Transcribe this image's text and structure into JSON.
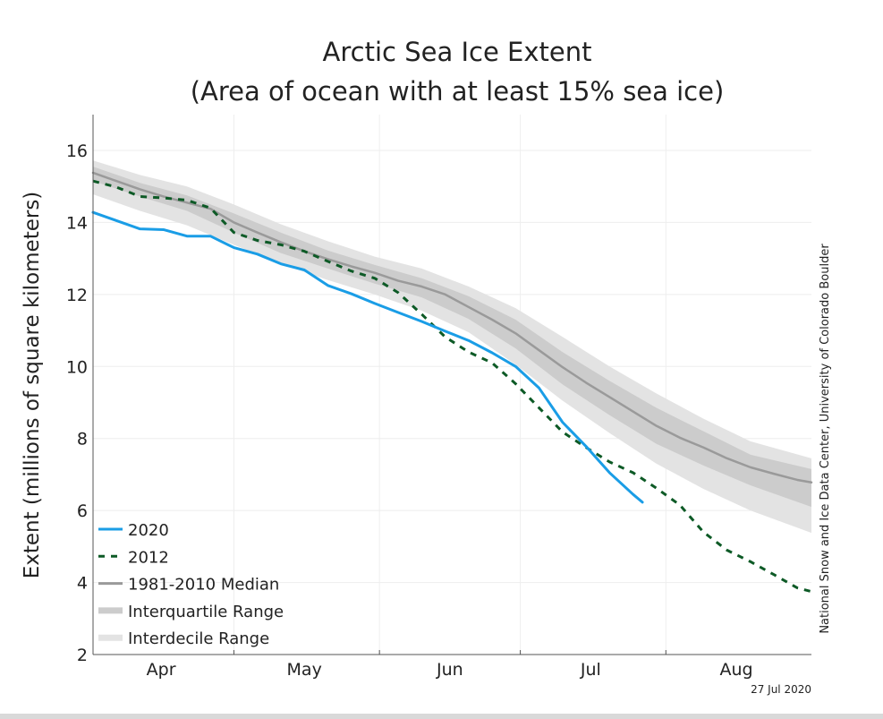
{
  "chart_data": {
    "type": "line",
    "title": "Arctic Sea Ice Extent",
    "subtitle": "(Area of ocean with at least 15% sea ice)",
    "xlabel": "",
    "ylabel": "Extent (millions of square kilometers)",
    "ylim": [
      2,
      17
    ],
    "yticks": [
      2,
      4,
      6,
      8,
      10,
      12,
      14,
      16
    ],
    "xlim_days_from_apr1": [
      0,
      153
    ],
    "xticks": [
      {
        "label": "Apr",
        "day": 14.5
      },
      {
        "label": "May",
        "day": 45
      },
      {
        "label": "Jun",
        "day": 76
      },
      {
        "label": "Jul",
        "day": 106
      },
      {
        "label": "Aug",
        "day": 137
      }
    ],
    "month_boundaries_days": [
      30,
      61,
      91,
      122
    ],
    "grid": true,
    "legend_position": "bottom-left",
    "credit": "National Snow and Ice Data Center, University of Colorado Boulder",
    "date_stamp": "27 Jul 2020",
    "x": [
      0,
      5,
      10,
      15,
      20,
      25,
      30,
      35,
      40,
      45,
      50,
      55,
      60,
      65,
      70,
      75,
      80,
      85,
      90,
      95,
      100,
      105,
      110,
      115,
      120,
      125,
      130,
      135,
      140,
      145,
      150,
      153
    ],
    "series": [
      {
        "name": "2020",
        "color": "#1a9de6",
        "style": "solid",
        "x": [
          0,
          5,
          10,
          15,
          20,
          25,
          30,
          35,
          40,
          45,
          50,
          55,
          60,
          65,
          70,
          75,
          80,
          85,
          90,
          95,
          100,
          105,
          110,
          115,
          117
        ],
        "values": [
          14.28,
          14.05,
          13.82,
          13.8,
          13.62,
          13.62,
          13.3,
          13.12,
          12.85,
          12.68,
          12.25,
          12.02,
          11.75,
          11.5,
          11.25,
          10.98,
          10.72,
          10.38,
          10.0,
          9.4,
          8.45,
          7.78,
          7.05,
          6.45,
          6.23
        ]
      },
      {
        "name": "2012",
        "color": "#0d5a26",
        "style": "dashed",
        "x": [
          0,
          5,
          10,
          15,
          20,
          25,
          30,
          35,
          40,
          45,
          50,
          55,
          60,
          65,
          70,
          75,
          80,
          85,
          90,
          95,
          100,
          105,
          110,
          115,
          120,
          125,
          130,
          135,
          140,
          145,
          150,
          153
        ],
        "values": [
          15.15,
          14.98,
          14.72,
          14.68,
          14.62,
          14.4,
          13.72,
          13.5,
          13.38,
          13.2,
          12.92,
          12.65,
          12.45,
          12.05,
          11.45,
          10.82,
          10.4,
          10.1,
          9.52,
          8.85,
          8.18,
          7.75,
          7.35,
          7.05,
          6.62,
          6.15,
          5.4,
          4.9,
          4.58,
          4.22,
          3.85,
          3.75
        ]
      },
      {
        "name": "1981-2010 Median",
        "color": "#9a9a9a",
        "style": "solid",
        "x": [
          0,
          5,
          10,
          15,
          20,
          25,
          30,
          35,
          40,
          45,
          50,
          55,
          60,
          65,
          70,
          75,
          80,
          85,
          90,
          95,
          100,
          105,
          110,
          115,
          120,
          125,
          130,
          135,
          140,
          145,
          150,
          153
        ],
        "values": [
          15.38,
          15.15,
          14.92,
          14.72,
          14.55,
          14.38,
          14.0,
          13.72,
          13.45,
          13.2,
          12.98,
          12.78,
          12.6,
          12.38,
          12.22,
          12.0,
          11.65,
          11.3,
          10.92,
          10.45,
          9.98,
          9.55,
          9.15,
          8.75,
          8.35,
          8.02,
          7.75,
          7.45,
          7.2,
          7.02,
          6.85,
          6.78
        ]
      }
    ],
    "bands": [
      {
        "name": "Interquartile Range",
        "color": "#cccccc",
        "x": [
          0,
          10,
          20,
          30,
          40,
          50,
          60,
          70,
          80,
          90,
          100,
          110,
          120,
          130,
          140,
          153
        ],
        "upper": [
          15.55,
          15.1,
          14.75,
          14.25,
          13.72,
          13.22,
          12.82,
          12.45,
          11.95,
          11.3,
          10.4,
          9.6,
          8.85,
          8.2,
          7.55,
          7.15
        ],
        "lower": [
          15.15,
          14.72,
          14.32,
          13.72,
          13.15,
          12.72,
          12.3,
          11.92,
          11.32,
          10.5,
          9.5,
          8.65,
          7.85,
          7.25,
          6.7,
          6.1
        ]
      },
      {
        "name": "Interdecile Range",
        "color": "#e3e3e3",
        "x": [
          0,
          10,
          20,
          30,
          40,
          50,
          60,
          70,
          80,
          90,
          100,
          110,
          120,
          130,
          140,
          153
        ],
        "upper": [
          15.72,
          15.32,
          15.0,
          14.5,
          13.95,
          13.48,
          13.05,
          12.72,
          12.22,
          11.62,
          10.82,
          10.0,
          9.25,
          8.55,
          7.92,
          7.45
        ],
        "lower": [
          14.78,
          14.32,
          13.92,
          13.38,
          12.85,
          12.4,
          12.0,
          11.55,
          10.95,
          10.05,
          9.05,
          8.15,
          7.3,
          6.6,
          6.0,
          5.38
        ]
      }
    ],
    "legend": [
      {
        "label": "2020",
        "kind": "line-solid",
        "color": "#1a9de6"
      },
      {
        "label": "2012",
        "kind": "line-dashed",
        "color": "#0d5a26"
      },
      {
        "label": "1981-2010 Median",
        "kind": "line-solid",
        "color": "#9a9a9a"
      },
      {
        "label": "Interquartile Range",
        "kind": "band",
        "color": "#cccccc"
      },
      {
        "label": "Interdecile Range",
        "kind": "band",
        "color": "#e3e3e3"
      }
    ]
  }
}
